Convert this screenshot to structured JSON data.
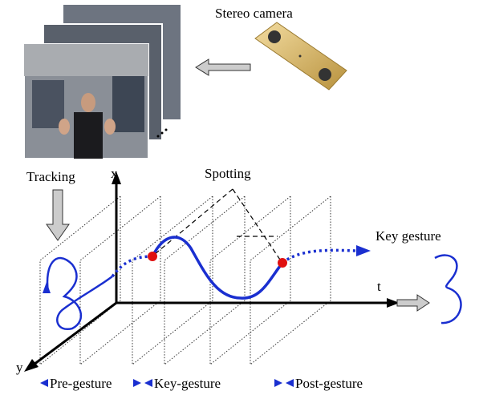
{
  "labels": {
    "camera": "Stereo camera",
    "tracking": "Tracking",
    "spotting": "Spotting",
    "key_gesture": "Key gesture"
  },
  "axes": {
    "x": "x",
    "t": "t",
    "y": "y"
  },
  "phases": [
    "Pre-gesture",
    "Key-gesture",
    "Post-gesture"
  ]
}
